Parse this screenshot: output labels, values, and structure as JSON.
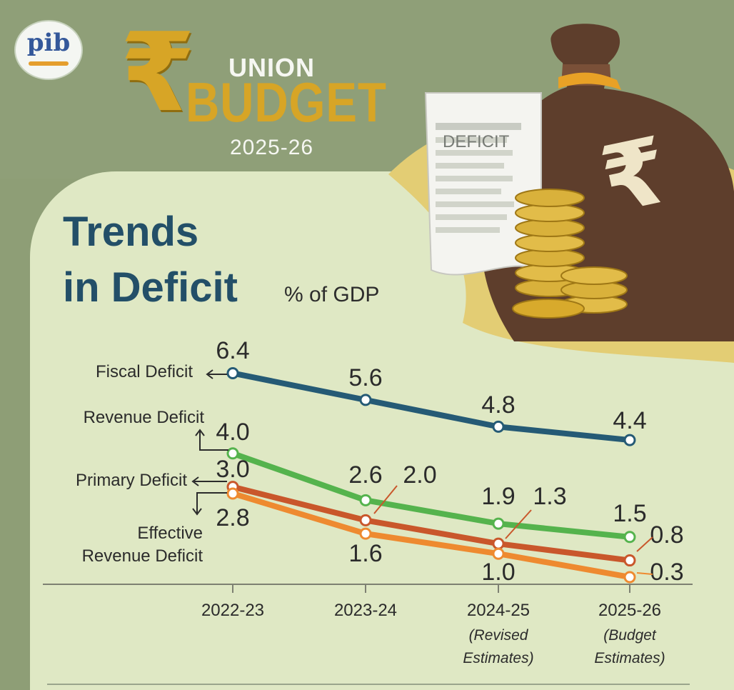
{
  "logo": {
    "text": "pib"
  },
  "badge": {
    "union": "UNION",
    "budget": "BUDGET",
    "year": "2025-26",
    "rupee": "₹"
  },
  "title": {
    "line1": "Trends",
    "line2": "in Deficit",
    "unit": "% of GDP"
  },
  "illustration": {
    "paper_label": "DEFICIT",
    "bag_symbol": "₹"
  },
  "colors": {
    "background": "#8e9e76",
    "panel": "#dfe8c4",
    "title": "#234f68",
    "fiscal": "#255a75",
    "revenue": "#55b34d",
    "primary": "#c9572b",
    "effective": "#ee8a30"
  },
  "chart_data": {
    "type": "line",
    "categories": [
      "2022-23",
      "2023-24",
      "2024-25",
      "2025-26"
    ],
    "category_notes": [
      "",
      "",
      "(Revised Estimates)",
      "(Budget Estimates)"
    ],
    "series": [
      {
        "name": "Fiscal Deficit",
        "values": [
          6.4,
          5.6,
          4.8,
          4.4
        ],
        "value_labels": [
          "6.4",
          "5.6",
          "4.8",
          "4.4"
        ]
      },
      {
        "name": "Revenue Deficit",
        "values": [
          4.0,
          2.6,
          1.9,
          1.5
        ],
        "value_labels": [
          "4.0",
          "2.6",
          "1.9",
          "1.5"
        ]
      },
      {
        "name": "Primary Deficit",
        "values": [
          3.0,
          2.0,
          1.3,
          0.8
        ],
        "value_labels": [
          "3.0",
          "2.0",
          "1.3",
          "0.8"
        ]
      },
      {
        "name": "Effective Revenue Deficit",
        "values": [
          2.8,
          1.6,
          1.0,
          0.3
        ],
        "value_labels": [
          "2.8",
          "1.6",
          "1.0",
          "0.3"
        ]
      }
    ],
    "grid": false,
    "legend": "left-inline"
  }
}
